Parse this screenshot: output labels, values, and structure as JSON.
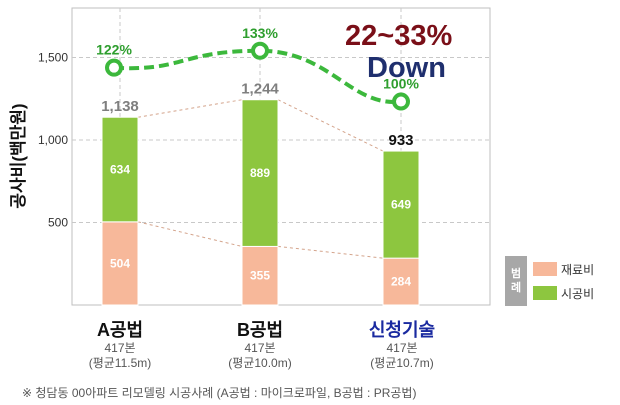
{
  "chart_data": {
    "type": "bar",
    "stacked": true,
    "categories": [
      "A공법",
      "B공법",
      "신청기술"
    ],
    "category_sub1": [
      "417본",
      "417본",
      "417본"
    ],
    "category_sub2": [
      "(평균11.5m)",
      "(평균10.0m)",
      "(평균10.7m)"
    ],
    "series": [
      {
        "name": "재료비",
        "values": [
          504,
          355,
          284
        ],
        "color": "#f7b89a"
      },
      {
        "name": "시공비",
        "values": [
          634,
          889,
          649
        ],
        "color": "#8dc63f"
      }
    ],
    "totals": [
      1138,
      1244,
      933
    ],
    "total_labels": [
      "1,138",
      "1,244",
      "933"
    ],
    "ratio_labels": [
      "122%",
      "133%",
      "100%"
    ],
    "ylabel": "공사비(백만원)",
    "ylim": [
      0,
      1800
    ],
    "yticks": [
      500,
      1000,
      1500
    ],
    "ytick_labels": [
      "500",
      "1,000",
      "1,500"
    ],
    "grid": true,
    "legend_title": [
      "범",
      "례"
    ],
    "legend_position": "bottom-right",
    "headline": [
      "22~33%",
      "Down"
    ],
    "colors": {
      "material": "#f7b89a",
      "construction": "#8dc63f",
      "trend": "#3cb83c",
      "highlight_category": "#1a2aa0"
    }
  },
  "footnote": "※ 청담동 00아파트 리모델링 시공사례 (A공법 : 마이크로파일, B공법 : PR공법)"
}
